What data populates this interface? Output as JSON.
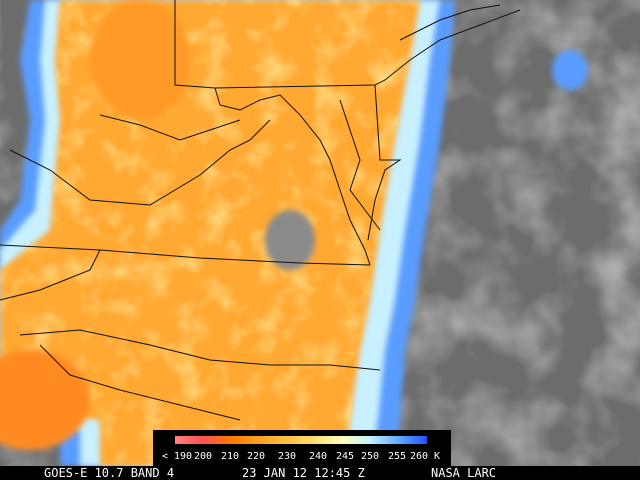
{
  "caption": {
    "left": "GOES-E 10.7 BAND 4",
    "center": "23 JAN 12 12:45 Z",
    "right": "NASA LARC"
  },
  "legend": {
    "labels": [
      "< 190",
      "200",
      "210",
      "220",
      "230",
      "240",
      "245",
      "250",
      "255",
      "260 K"
    ],
    "colors": [
      "#ff8080",
      "#ff5050",
      "#ff7a00",
      "#ffa020",
      "#ffc040",
      "#ffe070",
      "#ffffc0",
      "#c0f0ff",
      "#60a8ff",
      "#2050ff"
    ]
  }
}
